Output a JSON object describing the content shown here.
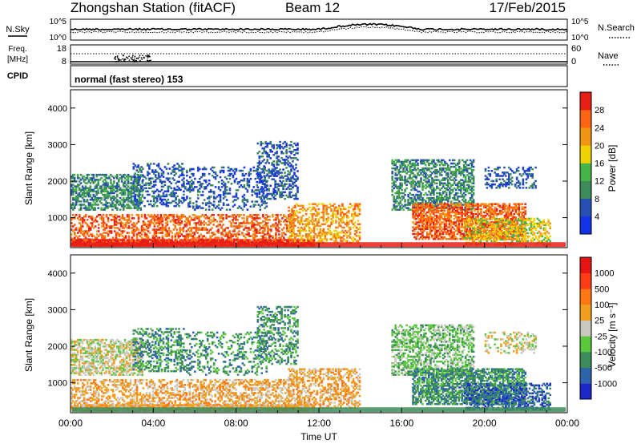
{
  "header": {
    "station": "Zhongshan Station (fitACF)",
    "beam": "Beam 12",
    "date": "17/Feb/2015"
  },
  "noise_panel": {
    "left_label": "N.Sky",
    "right_label": "N.Search",
    "left_ticks": [
      "10^5",
      "10^0"
    ],
    "right_ticks": [
      "10^5",
      "10^0"
    ]
  },
  "freq_panel": {
    "left_label": "Freq.",
    "left_unit": "[MHz]",
    "right_label": "Nave",
    "left_ticks": [
      "18",
      "8"
    ],
    "right_ticks": [
      "60",
      "0"
    ]
  },
  "cpid_panel": {
    "label": "CPID",
    "text": "normal (fast stereo) 153"
  },
  "chart_data": [
    {
      "type": "heatmap",
      "name": "power",
      "ylabel": "Slant Range [km]",
      "xlabel": "Time UT",
      "ylim": [
        180,
        4500
      ],
      "yticks": [
        1000,
        2000,
        3000,
        4000
      ],
      "xticks": [
        "00:00",
        "04:00",
        "08:00",
        "12:00",
        "16:00",
        "20:00",
        "00:00"
      ],
      "xlim_hours": [
        0,
        24
      ],
      "colorbar": {
        "label": "Power [dB]",
        "ticks": [
          "4",
          "8",
          "12",
          "16",
          "20",
          "24",
          "28"
        ],
        "colors": [
          "#1432e6",
          "#2850b4",
          "#3c8c5a",
          "#46b446",
          "#f0d200",
          "#f09614",
          "#ff6414",
          "#e61e14"
        ]
      }
    },
    {
      "type": "heatmap",
      "name": "velocity",
      "ylabel": "Slant Range [km]",
      "xlabel": "Time UT",
      "ylim": [
        180,
        4500
      ],
      "yticks": [
        1000,
        2000,
        3000,
        4000
      ],
      "xticks": [
        "00:00",
        "04:00",
        "08:00",
        "12:00",
        "16:00",
        "20:00",
        "00:00"
      ],
      "xlim_hours": [
        0,
        24
      ],
      "colorbar": {
        "label": "Velocity [m s⁻¹]",
        "ticks": [
          "1000",
          "500",
          "100",
          "25",
          "-25",
          "-100",
          "-500",
          "-1000"
        ],
        "colors": [
          "#1e28c8",
          "#2d64aa",
          "#3c8c5a",
          "#5ac83c",
          "#c8c8c0",
          "#f0a01e",
          "#ff7814",
          "#ff3c14",
          "#e61414"
        ]
      }
    }
  ],
  "colors": {
    "ground": "#e61e14",
    "grey_mask": "#9b9b9b"
  }
}
